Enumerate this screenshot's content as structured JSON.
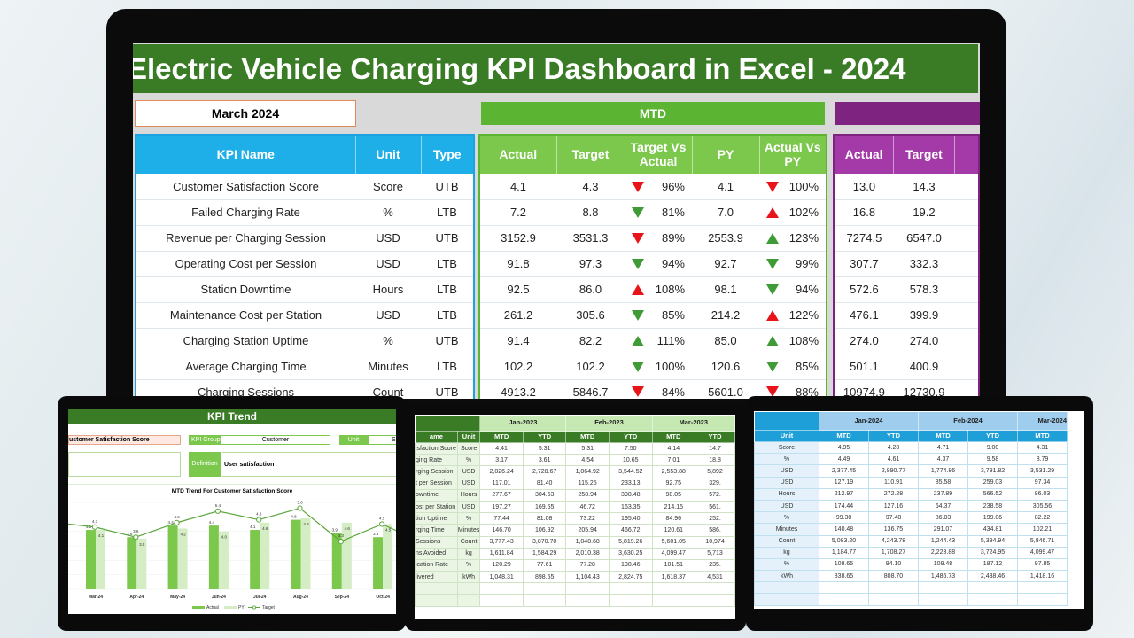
{
  "main": {
    "title": "Electric Vehicle Charging KPI Dashboard in Excel - 2024",
    "month": "March 2024",
    "mtd_label": "MTD",
    "kpi_headers": [
      "KPI Name",
      "Unit",
      "Type"
    ],
    "mtd_headers": [
      "Actual",
      "Target",
      "Target Vs Actual",
      "PY",
      "Actual Vs PY"
    ],
    "ytd_headers": [
      "Actual",
      "Target"
    ],
    "colors": {
      "up_down_bad": "#e8141a",
      "good": "#3f9b35",
      "title_bg": "#3a7b25",
      "mtd": "#5bb432",
      "ytd": "#7e2380",
      "kpi": "#1eaee8"
    },
    "rows": [
      {
        "name": "Customer Satisfaction Score",
        "unit": "Score",
        "type": "UTB",
        "actual": "4.1",
        "target": "4.3",
        "tva": {
          "v": "96%",
          "dir": "down",
          "good": false
        },
        "py": "4.1",
        "avp": {
          "v": "100%",
          "dir": "down",
          "good": false
        },
        "ytd_actual": "13.0",
        "ytd_target": "14.3"
      },
      {
        "name": "Failed Charging Rate",
        "unit": "%",
        "type": "LTB",
        "actual": "7.2",
        "target": "8.8",
        "tva": {
          "v": "81%",
          "dir": "down",
          "good": true
        },
        "py": "7.0",
        "avp": {
          "v": "102%",
          "dir": "up",
          "good": false
        },
        "ytd_actual": "16.8",
        "ytd_target": "19.2"
      },
      {
        "name": "Revenue per Charging Session",
        "unit": "USD",
        "type": "UTB",
        "actual": "3152.9",
        "target": "3531.3",
        "tva": {
          "v": "89%",
          "dir": "down",
          "good": false
        },
        "py": "2553.9",
        "avp": {
          "v": "123%",
          "dir": "up",
          "good": true
        },
        "ytd_actual": "7274.5",
        "ytd_target": "6547.0"
      },
      {
        "name": "Operating Cost per Session",
        "unit": "USD",
        "type": "LTB",
        "actual": "91.8",
        "target": "97.3",
        "tva": {
          "v": "94%",
          "dir": "down",
          "good": true
        },
        "py": "92.7",
        "avp": {
          "v": "99%",
          "dir": "down",
          "good": true
        },
        "ytd_actual": "307.7",
        "ytd_target": "332.3"
      },
      {
        "name": "Station Downtime",
        "unit": "Hours",
        "type": "LTB",
        "actual": "92.5",
        "target": "86.0",
        "tva": {
          "v": "108%",
          "dir": "up",
          "good": false
        },
        "py": "98.1",
        "avp": {
          "v": "94%",
          "dir": "down",
          "good": true
        },
        "ytd_actual": "572.6",
        "ytd_target": "578.3"
      },
      {
        "name": "Maintenance Cost per Station",
        "unit": "USD",
        "type": "LTB",
        "actual": "261.2",
        "target": "305.6",
        "tva": {
          "v": "85%",
          "dir": "down",
          "good": true
        },
        "py": "214.2",
        "avp": {
          "v": "122%",
          "dir": "up",
          "good": false
        },
        "ytd_actual": "476.1",
        "ytd_target": "399.9"
      },
      {
        "name": "Charging Station Uptime",
        "unit": "%",
        "type": "UTB",
        "actual": "91.4",
        "target": "82.2",
        "tva": {
          "v": "111%",
          "dir": "up",
          "good": true
        },
        "py": "85.0",
        "avp": {
          "v": "108%",
          "dir": "up",
          "good": true
        },
        "ytd_actual": "274.0",
        "ytd_target": "274.0"
      },
      {
        "name": "Average Charging Time",
        "unit": "Minutes",
        "type": "LTB",
        "actual": "102.2",
        "target": "102.2",
        "tva": {
          "v": "100%",
          "dir": "down",
          "good": true
        },
        "py": "120.6",
        "avp": {
          "v": "85%",
          "dir": "down",
          "good": true
        },
        "ytd_actual": "501.1",
        "ytd_target": "400.9"
      },
      {
        "name": "Charging Sessions",
        "unit": "Count",
        "type": "UTB",
        "actual": "4913.2",
        "target": "5846.7",
        "tva": {
          "v": "84%",
          "dir": "down",
          "good": false
        },
        "py": "5601.0",
        "avp": {
          "v": "88%",
          "dir": "down",
          "good": false
        },
        "ytd_actual": "10974.9",
        "ytd_target": "12730.9"
      }
    ]
  },
  "trend": {
    "title": "KPI Trend",
    "kpi": "ustomer Satisfaction Score",
    "group_label": "KPI Group",
    "group": "Customer",
    "unit_label": "Unit",
    "unit": "Sco",
    "def_label": "Definition",
    "definition": "User satisfaction"
  },
  "chart_data": {
    "type": "bar",
    "title": "MTD Trend For Customer Satisfaction Score",
    "categories": [
      "Mar-24",
      "Apr-24",
      "May-24",
      "Jun-24",
      "Jul-24",
      "Aug-24",
      "Sep-24",
      "Oct-24"
    ],
    "series": [
      {
        "name": "Actual",
        "kind": "bar",
        "values": [
          4.1,
          3.6,
          4.4,
          4.4,
          4.1,
          4.8,
          3.9,
          3.6
        ]
      },
      {
        "name": "PY",
        "kind": "bar",
        "values": [
          4.1,
          3.5,
          4.2,
          4.0,
          4.6,
          4.9,
          4.6,
          4.5
        ]
      },
      {
        "name": "Target",
        "kind": "line",
        "values": [
          4.3,
          3.6,
          4.6,
          5.4,
          4.8,
          5.6,
          3.3,
          4.5
        ]
      }
    ],
    "colors": {
      "Actual": "#7cc84d",
      "PY": "#d4edc4",
      "Target": "#5aa63a"
    },
    "ylim": [
      0,
      6
    ],
    "grid": true,
    "legend": "bottom"
  },
  "t2": {
    "months": [
      "Jan-2023",
      "Feb-2023",
      "Mar-2023"
    ],
    "hdr_name": "ame",
    "hdr_unit": "Unit",
    "sub": [
      "MTD",
      "YTD",
      "MTD",
      "YTD",
      "MTD",
      "YTD"
    ],
    "rows": [
      [
        "isfaction Score",
        "Score",
        "4.41",
        "5.31",
        "5.31",
        "7.50",
        "4.14",
        "14.7"
      ],
      [
        "ging Rate",
        "%",
        "3.17",
        "3.61",
        "4.54",
        "10.65",
        "7.01",
        "18.8"
      ],
      [
        "rging Session",
        "USD",
        "2,026.24",
        "2,728.67",
        "1,064.92",
        "3,544.52",
        "2,553.88",
        "5,892"
      ],
      [
        "t per Session",
        "USD",
        "117.01",
        "81.40",
        "115.25",
        "233.13",
        "92.75",
        "329."
      ],
      [
        "owntime",
        "Hours",
        "277.67",
        "304.63",
        "258.94",
        "398.48",
        "98.05",
        "572."
      ],
      [
        "ost per Station",
        "USD",
        "197.27",
        "169.55",
        "46.72",
        "163.35",
        "214.15",
        "561."
      ],
      [
        "tion Uptime",
        "%",
        "77.44",
        "81.08",
        "73.22",
        "195.40",
        "84.96",
        "252."
      ],
      [
        "rging Time",
        "Minutes",
        "146.70",
        "106.92",
        "205.94",
        "466.72",
        "120.61",
        "586."
      ],
      [
        "Sessions",
        "Count",
        "3,777.43",
        "3,870.70",
        "1,048.68",
        "5,819.26",
        "5,601.05",
        "10,974"
      ],
      [
        "ns Avoided",
        "kg",
        "1,611.84",
        "1,584.29",
        "2,010.38",
        "3,630.25",
        "4,099.47",
        "5,713"
      ],
      [
        "ication Rate",
        "%",
        "120.29",
        "77.61",
        "77.28",
        "198.46",
        "101.51",
        "235."
      ],
      [
        "livered",
        "kWh",
        "1,048.31",
        "898.55",
        "1,104.43",
        "2,824.75",
        "1,618.37",
        "4,531"
      ]
    ]
  },
  "t3": {
    "months": [
      "Jan-2024",
      "Feb-2024",
      "Mar-2024"
    ],
    "hdr_unit": "Unit",
    "sub": [
      "MTD",
      "YTD",
      "MTD",
      "YTD",
      "MTD"
    ],
    "rows": [
      [
        "Score",
        "4.95",
        "4.28",
        "4.71",
        "9.00",
        "4.31"
      ],
      [
        "%",
        "4.49",
        "4.61",
        "4.37",
        "9.58",
        "8.79"
      ],
      [
        "USD",
        "2,377.45",
        "2,890.77",
        "1,774.86",
        "3,791.82",
        "3,531.29"
      ],
      [
        "USD",
        "127.19",
        "110.91",
        "85.58",
        "259.03",
        "97.34"
      ],
      [
        "Hours",
        "212.97",
        "272.28",
        "237.89",
        "566.52",
        "86.03"
      ],
      [
        "USD",
        "174.44",
        "127.16",
        "64.37",
        "238.58",
        "305.56"
      ],
      [
        "%",
        "99.30",
        "97.48",
        "86.03",
        "199.06",
        "82.22"
      ],
      [
        "Minutes",
        "140.48",
        "136.75",
        "291.07",
        "434.81",
        "102.21"
      ],
      [
        "Count",
        "5,083.20",
        "4,243.78",
        "1,244.43",
        "5,394.94",
        "5,846.71"
      ],
      [
        "kg",
        "1,184.77",
        "1,708.27",
        "2,223.88",
        "3,724.95",
        "4,099.47"
      ],
      [
        "%",
        "108.65",
        "94.10",
        "109.48",
        "187.12",
        "97.85"
      ],
      [
        "kWh",
        "838.65",
        "808.70",
        "1,486.73",
        "2,438.46",
        "1,418.16"
      ]
    ]
  }
}
